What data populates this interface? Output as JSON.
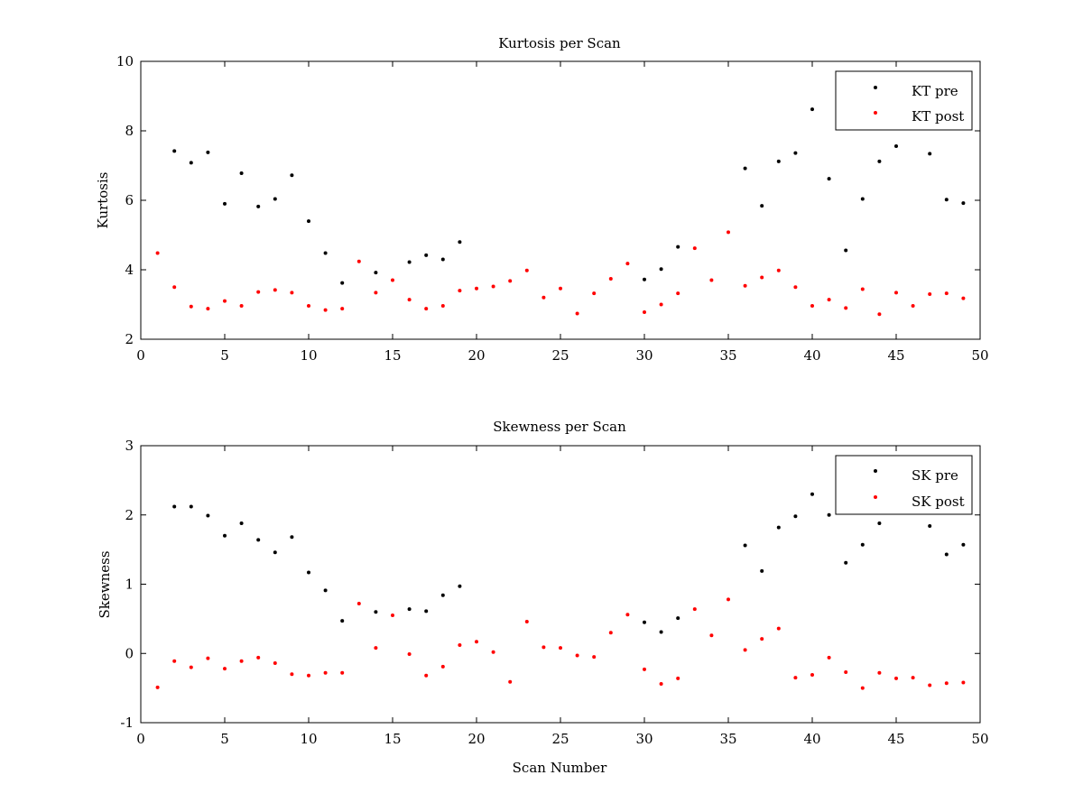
{
  "chart_data": [
    {
      "type": "scatter",
      "title": "Kurtosis per Scan",
      "xlabel": "",
      "ylabel": "Kurtosis",
      "xlim": [
        0,
        50
      ],
      "ylim": [
        2,
        10
      ],
      "xticks": [
        0,
        5,
        10,
        15,
        20,
        25,
        30,
        35,
        40,
        45,
        50
      ],
      "yticks": [
        2,
        4,
        6,
        8,
        10
      ],
      "grid": false,
      "legend_position": "top-right",
      "series": [
        {
          "name": "KT pre",
          "color": "#000000",
          "x": [
            2,
            3,
            4,
            5,
            6,
            7,
            8,
            9,
            10,
            11,
            12,
            14,
            16,
            17,
            18,
            19,
            30,
            31,
            32,
            36,
            37,
            38,
            39,
            40,
            41,
            42,
            43,
            44,
            45,
            47,
            48,
            49
          ],
          "y": [
            7.42,
            7.08,
            7.38,
            5.9,
            6.78,
            5.82,
            6.04,
            6.72,
            5.4,
            4.48,
            3.62,
            3.92,
            4.22,
            4.42,
            4.3,
            4.8,
            3.72,
            4.02,
            4.66,
            6.92,
            5.84,
            7.12,
            7.36,
            8.62,
            6.62,
            4.56,
            6.04,
            7.12,
            7.56,
            7.34,
            6.02,
            5.92
          ]
        },
        {
          "name": "KT post",
          "color": "#ff0000",
          "x": [
            1,
            2,
            3,
            4,
            5,
            6,
            7,
            8,
            9,
            10,
            11,
            12,
            13,
            14,
            15,
            16,
            17,
            18,
            19,
            20,
            21,
            22,
            23,
            24,
            25,
            26,
            27,
            28,
            29,
            30,
            31,
            32,
            33,
            34,
            35,
            36,
            37,
            38,
            39,
            40,
            41,
            42,
            43,
            44,
            45,
            46,
            47,
            48,
            49
          ],
          "y": [
            4.48,
            3.5,
            2.94,
            2.88,
            3.1,
            2.96,
            3.36,
            3.42,
            3.34,
            2.96,
            2.84,
            2.88,
            4.24,
            3.34,
            3.7,
            3.14,
            2.88,
            2.96,
            3.4,
            3.46,
            3.52,
            3.68,
            3.98,
            3.2,
            3.46,
            2.74,
            3.32,
            3.74,
            4.18,
            2.78,
            3.0,
            3.32,
            4.62,
            3.7,
            5.08,
            3.54,
            3.78,
            3.98,
            3.5,
            2.96,
            3.14,
            2.9,
            3.44,
            2.72,
            3.34,
            2.96,
            3.3,
            3.32,
            3.18
          ]
        }
      ]
    },
    {
      "type": "scatter",
      "title": "Skewness per Scan",
      "xlabel": "Scan Number",
      "ylabel": "Skewness",
      "xlim": [
        0,
        50
      ],
      "ylim": [
        -1,
        3
      ],
      "xticks": [
        0,
        5,
        10,
        15,
        20,
        25,
        30,
        35,
        40,
        45,
        50
      ],
      "yticks": [
        -1,
        0,
        1,
        2,
        3
      ],
      "grid": false,
      "legend_position": "top-right",
      "series": [
        {
          "name": "SK pre",
          "color": "#000000",
          "x": [
            2,
            3,
            4,
            5,
            6,
            7,
            8,
            9,
            10,
            11,
            12,
            14,
            16,
            17,
            18,
            19,
            30,
            31,
            32,
            36,
            37,
            38,
            39,
            40,
            41,
            42,
            43,
            44,
            47,
            48,
            49
          ],
          "y": [
            2.12,
            2.12,
            1.99,
            1.7,
            1.88,
            1.64,
            1.46,
            1.68,
            1.17,
            0.91,
            0.47,
            0.6,
            0.64,
            0.61,
            0.84,
            0.97,
            0.45,
            0.31,
            0.51,
            1.56,
            1.19,
            1.82,
            1.98,
            2.3,
            2.0,
            1.31,
            1.57,
            1.88,
            1.84,
            1.43,
            1.57
          ]
        },
        {
          "name": "SK post",
          "color": "#ff0000",
          "x": [
            1,
            2,
            3,
            4,
            5,
            6,
            7,
            8,
            9,
            10,
            11,
            12,
            13,
            14,
            15,
            16,
            17,
            18,
            19,
            20,
            21,
            22,
            23,
            24,
            25,
            26,
            27,
            28,
            29,
            30,
            31,
            32,
            33,
            34,
            35,
            36,
            37,
            38,
            39,
            40,
            41,
            42,
            43,
            44,
            45,
            46,
            47,
            48,
            49
          ],
          "y": [
            -0.49,
            -0.11,
            -0.2,
            -0.07,
            -0.22,
            -0.11,
            -0.06,
            -0.14,
            -0.3,
            -0.32,
            -0.28,
            -0.28,
            0.72,
            0.08,
            0.55,
            -0.01,
            -0.32,
            -0.19,
            0.12,
            0.17,
            0.02,
            -0.41,
            0.46,
            0.09,
            0.08,
            -0.03,
            -0.05,
            0.3,
            0.56,
            -0.23,
            -0.44,
            -0.36,
            0.64,
            0.26,
            0.78,
            0.05,
            0.21,
            0.36,
            -0.35,
            -0.31,
            -0.06,
            -0.27,
            -0.5,
            -0.28,
            -0.36,
            -0.35,
            -0.46,
            -0.43,
            -0.42
          ]
        }
      ]
    }
  ]
}
